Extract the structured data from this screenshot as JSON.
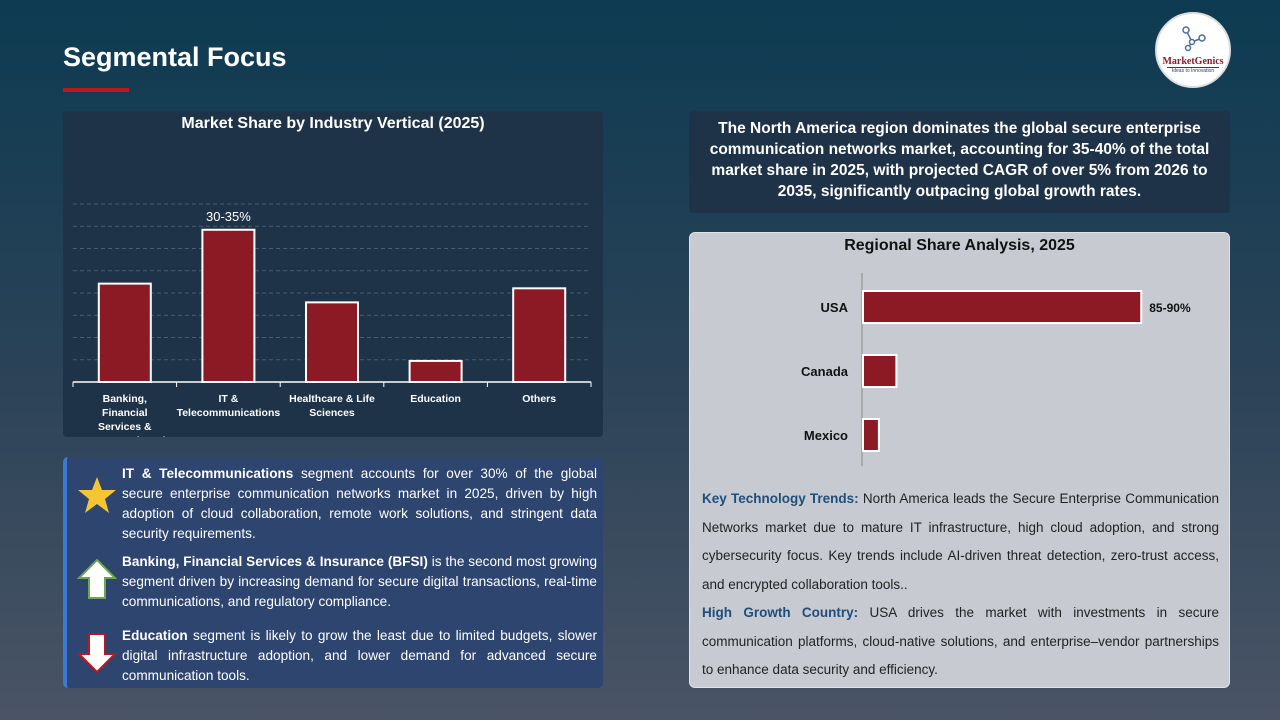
{
  "header": {
    "title": "Segmental Focus",
    "logo_text": "MarketGenics",
    "logo_tagline": "Ideas to Innovation"
  },
  "chart_data": [
    {
      "type": "bar",
      "title": "Market Share by Industry Vertical (2025)",
      "categories": [
        "Banking, Financial Services & Insurance (BFSI)",
        "IT & Telecommunications",
        "Healthcare & Life Sciences",
        "Education",
        "Others"
      ],
      "values": [
        21,
        32.5,
        17,
        4.5,
        20
      ],
      "data_labels": [
        "",
        "30-35%",
        "",
        "",
        ""
      ],
      "ylim": [
        0,
        38
      ],
      "grid": true,
      "color": "#8b1a25",
      "unit": "%"
    },
    {
      "type": "bar",
      "orientation": "horizontal",
      "title": "Regional Share Analysis, 2025",
      "categories": [
        "USA",
        "Canada",
        "Mexico"
      ],
      "values": [
        87.5,
        10.5,
        5
      ],
      "data_labels": [
        "85-90%",
        "",
        ""
      ],
      "xlim": [
        0,
        100
      ],
      "grid": false,
      "color": "#8b1a25",
      "unit": "%"
    }
  ],
  "insights": [
    {
      "icon": "star-icon",
      "bold": "IT & Telecommunications",
      "text": " segment accounts for over 30% of the global secure enterprise communication networks market in 2025, driven by high adoption of cloud collaboration, remote work solutions, and stringent data security requirements."
    },
    {
      "icon": "arrow-up-icon",
      "bold": "Banking, Financial Services & Insurance (BFSI)",
      "text": " is the second most growing segment driven by increasing demand for secure digital transactions, real-time communications, and regulatory compliance."
    },
    {
      "icon": "arrow-down-icon",
      "bold": "Education",
      "text": " segment is likely to grow the least due to limited budgets, slower digital infrastructure adoption, and lower demand for advanced secure communication tools."
    }
  ],
  "summary": "The North America region dominates the global secure enterprise communication networks market, accounting for 35-40% of the total market share in 2025, with projected CAGR of over 5% from 2026 to 2035, significantly outpacing global growth rates.",
  "trends": [
    {
      "label": "Key Technology Trends:",
      "text": " North America leads the Secure Enterprise Communication Networks market due to mature IT infrastructure, high cloud adoption, and strong cybersecurity focus. Key trends include AI-driven threat detection, zero-trust access, and encrypted collaboration tools.."
    },
    {
      "label": "High Growth Country:",
      "text": " USA drives the market with investments in secure communication platforms, cloud-native solutions, and enterprise–vendor partnerships to enhance data security and efficiency."
    }
  ],
  "colors": {
    "accent": "#c0141e",
    "bar": "#8b1a25",
    "trend_label": "#1f4e79"
  }
}
